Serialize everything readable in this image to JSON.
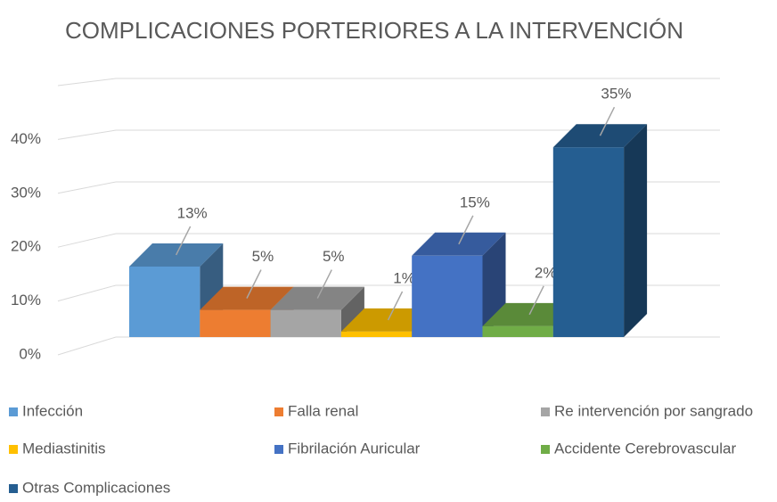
{
  "chart_data": {
    "type": "bar",
    "title": "COMPLICACIONES PORTERIORES A LA INTERVENCIÓN",
    "categories": [
      "Infección",
      "Falla renal",
      "Re intervención por sangrado",
      "Mediastinitis",
      "Fibrilación Auricular",
      "Accidente Cerebrovascular",
      "Otras Complicaciones"
    ],
    "values": [
      13,
      5,
      5,
      1,
      15,
      2,
      35
    ],
    "value_labels": [
      "13%",
      "5%",
      "5%",
      "1%",
      "15%",
      "2%",
      "35%"
    ],
    "colors": [
      "#5b9bd5",
      "#ed7d31",
      "#a5a5a5",
      "#ffc000",
      "#4472c4",
      "#70ad47",
      "#255e91"
    ],
    "ylim": [
      0,
      50
    ],
    "yticks": [
      {
        "value": 0,
        "label": "0%"
      },
      {
        "value": 10,
        "label": "10%"
      },
      {
        "value": 20,
        "label": "20%"
      },
      {
        "value": 30,
        "label": "30%"
      },
      {
        "value": 40,
        "label": "40%"
      }
    ],
    "grid": true,
    "legend": "bottom"
  }
}
